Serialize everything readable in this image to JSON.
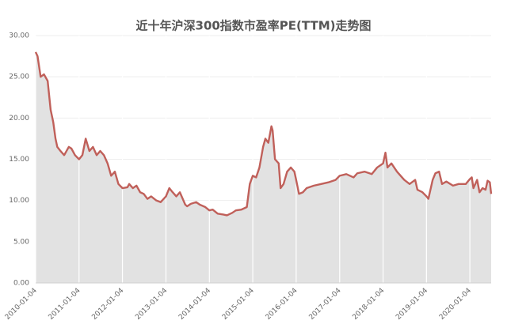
{
  "chart_data": {
    "type": "area",
    "title": "近十年沪深300指数市盈率PE(TTM)走势图",
    "color": "#c0605a",
    "fill_color": "#e2e2e2",
    "grid": true,
    "ylim": [
      0,
      30
    ],
    "yticks": [
      {
        "value": 0,
        "label": "0.00"
      },
      {
        "value": 5,
        "label": "5.00"
      },
      {
        "value": 10,
        "label": "10.00"
      },
      {
        "value": 15,
        "label": "15.00"
      },
      {
        "value": 20,
        "label": "20.00"
      },
      {
        "value": 25,
        "label": "25.00"
      },
      {
        "value": 30,
        "label": "30.00"
      }
    ],
    "xlim": [
      "2010-01-04",
      "2020-07-01"
    ],
    "xticks": [
      "2010-01-04",
      "2011-01-04",
      "2012-01-04",
      "2013-01-04",
      "2014-01-04",
      "2015-01-04",
      "2016-01-04",
      "2017-01-04",
      "2018-01-04",
      "2019-01-04",
      "2020-01-04"
    ],
    "x": [
      "2010-01-04",
      "2010-01-20",
      "2010-02-15",
      "2010-03-15",
      "2010-04-15",
      "2010-05-10",
      "2010-06-01",
      "2010-06-20",
      "2010-07-05",
      "2010-08-01",
      "2010-09-01",
      "2010-10-10",
      "2010-11-01",
      "2010-12-01",
      "2011-01-04",
      "2011-02-01",
      "2011-03-01",
      "2011-04-01",
      "2011-05-01",
      "2011-06-01",
      "2011-07-01",
      "2011-08-01",
      "2011-09-01",
      "2011-10-01",
      "2011-11-01",
      "2011-12-01",
      "2012-01-04",
      "2012-02-15",
      "2012-03-01",
      "2012-04-01",
      "2012-05-01",
      "2012-06-01",
      "2012-07-01",
      "2012-08-01",
      "2012-09-01",
      "2012-10-15",
      "2012-11-20",
      "2013-01-04",
      "2013-02-01",
      "2013-03-01",
      "2013-04-01",
      "2013-05-01",
      "2013-06-15",
      "2013-07-01",
      "2013-08-01",
      "2013-09-15",
      "2013-10-15",
      "2013-12-01",
      "2014-01-04",
      "2014-02-01",
      "2014-03-15",
      "2014-05-01",
      "2014-06-01",
      "2014-07-15",
      "2014-08-15",
      "2014-10-01",
      "2014-11-15",
      "2014-12-10",
      "2015-01-04",
      "2015-02-01",
      "2015-03-01",
      "2015-04-01",
      "2015-04-20",
      "2015-05-15",
      "2015-06-10",
      "2015-06-20",
      "2015-07-10",
      "2015-08-10",
      "2015-08-26",
      "2015-09-20",
      "2015-10-20",
      "2015-11-20",
      "2015-12-20",
      "2016-01-04",
      "2016-01-28",
      "2016-03-01",
      "2016-04-01",
      "2016-06-01",
      "2016-08-01",
      "2016-10-01",
      "2016-12-01",
      "2017-01-04",
      "2017-03-01",
      "2017-05-01",
      "2017-06-01",
      "2017-08-01",
      "2017-10-01",
      "2017-11-15",
      "2018-01-04",
      "2018-01-24",
      "2018-02-10",
      "2018-03-15",
      "2018-05-01",
      "2018-07-01",
      "2018-08-15",
      "2018-10-01",
      "2018-10-20",
      "2018-12-01",
      "2019-01-04",
      "2019-01-20",
      "2019-02-25",
      "2019-03-20",
      "2019-04-20",
      "2019-05-15",
      "2019-06-20",
      "2019-08-15",
      "2019-10-01",
      "2019-12-01",
      "2020-01-04",
      "2020-01-20",
      "2020-02-03",
      "2020-03-05",
      "2020-03-25",
      "2020-04-20",
      "2020-05-15",
      "2020-06-01",
      "2020-06-20",
      "2020-07-01"
    ],
    "values": [
      28.0,
      27.5,
      25.0,
      25.3,
      24.5,
      21.0,
      19.5,
      17.5,
      16.5,
      16.0,
      15.5,
      16.5,
      16.3,
      15.5,
      15.0,
      15.5,
      17.5,
      16.0,
      16.5,
      15.5,
      16.0,
      15.5,
      14.5,
      13.0,
      13.5,
      12.0,
      11.5,
      11.6,
      12.0,
      11.5,
      11.8,
      11.0,
      10.8,
      10.2,
      10.5,
      10.0,
      9.8,
      10.5,
      11.5,
      11.0,
      10.5,
      11.0,
      9.5,
      9.3,
      9.6,
      9.8,
      9.5,
      9.2,
      8.8,
      8.9,
      8.4,
      8.3,
      8.2,
      8.5,
      8.8,
      8.9,
      9.2,
      12.0,
      13.0,
      12.8,
      14.0,
      16.5,
      17.5,
      17.0,
      19.0,
      18.5,
      15.0,
      14.5,
      11.5,
      12.0,
      13.5,
      14.0,
      13.5,
      12.5,
      10.8,
      11.0,
      11.5,
      11.8,
      12.0,
      12.2,
      12.5,
      13.0,
      13.2,
      12.8,
      13.3,
      13.5,
      13.2,
      14.0,
      14.5,
      15.8,
      14.0,
      14.5,
      13.5,
      12.5,
      12.0,
      12.5,
      11.3,
      11.0,
      10.5,
      10.2,
      12.5,
      13.3,
      13.5,
      12.0,
      12.3,
      11.8,
      12.0,
      12.0,
      12.6,
      12.8,
      11.5,
      12.5,
      11.0,
      11.5,
      11.3,
      12.4,
      12.2,
      10.8
    ]
  }
}
